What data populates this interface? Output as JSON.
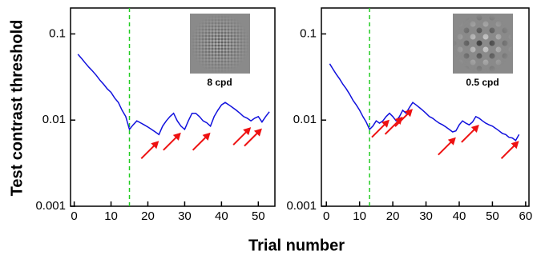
{
  "shared": {
    "ylabel": "Test contrast threshold",
    "xlabel": "Trial number"
  },
  "chart_data": [
    {
      "type": "line",
      "log_y": true,
      "inset_label": "8 cpd",
      "xlim": [
        -1,
        54.5
      ],
      "xticks": [
        0,
        10,
        20,
        30,
        40,
        50
      ],
      "ylim": [
        0.001,
        0.2
      ],
      "yticks": [
        0.001,
        0.01,
        0.1
      ],
      "vline": 15,
      "vline_color": "#22cc22",
      "arrow_color": "#ee1111",
      "arrow_trials": [
        23,
        29,
        37,
        48,
        51
      ],
      "x": [
        1,
        2,
        3,
        4,
        5,
        6,
        7,
        8,
        9,
        10,
        11,
        12,
        13,
        14,
        15,
        16,
        17,
        18,
        19,
        20,
        21,
        22,
        23,
        24,
        25,
        26,
        27,
        28,
        29,
        30,
        31,
        32,
        33,
        34,
        35,
        36,
        37,
        38,
        39,
        40,
        41,
        42,
        43,
        44,
        45,
        46,
        47,
        48,
        49,
        50,
        51,
        52,
        53
      ],
      "series": [
        {
          "color": "#1111dd",
          "values": [
            0.058,
            0.052,
            0.046,
            0.041,
            0.037,
            0.033,
            0.029,
            0.026,
            0.023,
            0.021,
            0.018,
            0.016,
            0.013,
            0.011,
            0.0078,
            0.0088,
            0.0098,
            0.0093,
            0.0088,
            0.0083,
            0.0078,
            0.0073,
            0.0068,
            0.0085,
            0.0098,
            0.011,
            0.012,
            0.0098,
            0.0085,
            0.0078,
            0.0098,
            0.012,
            0.012,
            0.011,
            0.0098,
            0.0093,
            0.0085,
            0.011,
            0.013,
            0.015,
            0.016,
            0.015,
            0.014,
            0.013,
            0.012,
            0.011,
            0.0105,
            0.0098,
            0.0105,
            0.011,
            0.0095,
            0.011,
            0.0125
          ]
        }
      ]
    },
    {
      "type": "line",
      "log_y": true,
      "inset_label": "0.5 cpd",
      "xlim": [
        -1.5,
        61
      ],
      "xticks": [
        0,
        10,
        20,
        30,
        40,
        50,
        60
      ],
      "ylim": [
        0.001,
        0.2
      ],
      "yticks": [
        0.001,
        0.01,
        0.1
      ],
      "vline": 13,
      "vline_color": "#22cc22",
      "arrow_color": "#ee1111",
      "arrow_trials": [
        19,
        23,
        26,
        39,
        46,
        58
      ],
      "x": [
        1,
        2,
        3,
        4,
        5,
        6,
        7,
        8,
        9,
        10,
        11,
        12,
        13,
        14,
        15,
        16,
        17,
        18,
        19,
        20,
        21,
        22,
        23,
        24,
        25,
        26,
        27,
        28,
        29,
        30,
        31,
        32,
        33,
        34,
        35,
        36,
        37,
        38,
        39,
        40,
        41,
        42,
        43,
        44,
        45,
        46,
        47,
        48,
        49,
        50,
        51,
        52,
        53,
        54,
        55,
        56,
        57,
        58
      ],
      "series": [
        {
          "color": "#1111dd",
          "values": [
            0.045,
            0.039,
            0.034,
            0.03,
            0.026,
            0.023,
            0.02,
            0.017,
            0.015,
            0.013,
            0.011,
            0.0095,
            0.0078,
            0.0085,
            0.0098,
            0.0092,
            0.0098,
            0.011,
            0.012,
            0.011,
            0.0098,
            0.011,
            0.013,
            0.012,
            0.014,
            0.016,
            0.015,
            0.014,
            0.013,
            0.012,
            0.011,
            0.0105,
            0.0098,
            0.0092,
            0.0088,
            0.0083,
            0.0078,
            0.0073,
            0.0075,
            0.0088,
            0.0098,
            0.0092,
            0.0088,
            0.0095,
            0.011,
            0.0105,
            0.0098,
            0.0092,
            0.0088,
            0.0085,
            0.008,
            0.0075,
            0.007,
            0.0068,
            0.0063,
            0.0062,
            0.0058,
            0.0068
          ]
        }
      ]
    }
  ]
}
